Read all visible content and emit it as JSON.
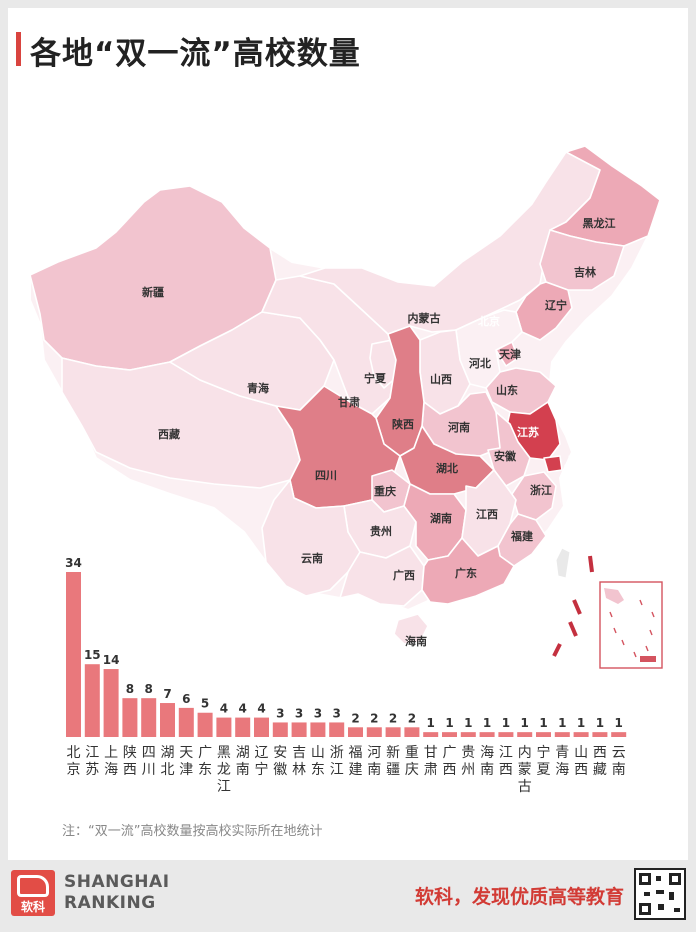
{
  "title": "各地“双一流”高校数量",
  "note": "注：“双一流”高校数量按高校实际所在地统计",
  "brand": {
    "logo_cn": "软科",
    "line1": "SHANGHAI",
    "line2": "RANKING"
  },
  "slogan": "软科，发现优质高等教育",
  "colors": {
    "accent": "#d9443f",
    "bar": "#e9787c",
    "map_light": "#f7e3e8",
    "map_dark": "#b8243a"
  },
  "chart_data": {
    "type": "bar",
    "categories": [
      "北京",
      "江苏",
      "上海",
      "陕西",
      "四川",
      "湖北",
      "天津",
      "广东",
      "黑龙江",
      "湖南",
      "辽宁",
      "安徽",
      "吉林",
      "山东",
      "浙江",
      "福建",
      "河南",
      "新疆",
      "重庆",
      "甘肃",
      "广西",
      "贵州",
      "海南",
      "江西",
      "内蒙古",
      "宁夏",
      "青海",
      "山西",
      "西藏",
      "云南"
    ],
    "values": [
      34,
      15,
      14,
      8,
      8,
      7,
      6,
      5,
      4,
      4,
      4,
      3,
      3,
      3,
      3,
      2,
      2,
      2,
      2,
      1,
      1,
      1,
      1,
      1,
      1,
      1,
      1,
      1,
      1,
      1
    ],
    "title": "",
    "xlabel": "",
    "ylabel": "",
    "grid": false
  },
  "map_labels": [
    {
      "name": "新疆",
      "value": 2
    },
    {
      "name": "西藏",
      "value": 1
    },
    {
      "name": "青海",
      "value": 1
    },
    {
      "name": "甘肃",
      "value": 1
    },
    {
      "name": "内蒙古",
      "value": 1
    },
    {
      "name": "宁夏",
      "value": 1
    },
    {
      "name": "黑龙江",
      "value": 4
    },
    {
      "name": "吉林",
      "value": 3
    },
    {
      "name": "辽宁",
      "value": 4
    },
    {
      "name": "北京",
      "value": 34
    },
    {
      "name": "天津",
      "value": 6
    },
    {
      "name": "河北",
      "value": 0
    },
    {
      "name": "山西",
      "value": 1
    },
    {
      "name": "山东",
      "value": 3
    },
    {
      "name": "河南",
      "value": 2
    },
    {
      "name": "陕西",
      "value": 8
    },
    {
      "name": "江苏",
      "value": 15
    },
    {
      "name": "上海",
      "value": 14
    },
    {
      "name": "安徽",
      "value": 3
    },
    {
      "name": "浙江",
      "value": 3
    },
    {
      "name": "湖北",
      "value": 7
    },
    {
      "name": "四川",
      "value": 8
    },
    {
      "name": "重庆",
      "value": 2
    },
    {
      "name": "贵州",
      "value": 1
    },
    {
      "name": "湖南",
      "value": 4
    },
    {
      "name": "江西",
      "value": 1
    },
    {
      "name": "福建",
      "value": 2
    },
    {
      "name": "云南",
      "value": 1
    },
    {
      "name": "广西",
      "value": 1
    },
    {
      "name": "广东",
      "value": 5
    },
    {
      "name": "海南",
      "value": 1
    }
  ]
}
